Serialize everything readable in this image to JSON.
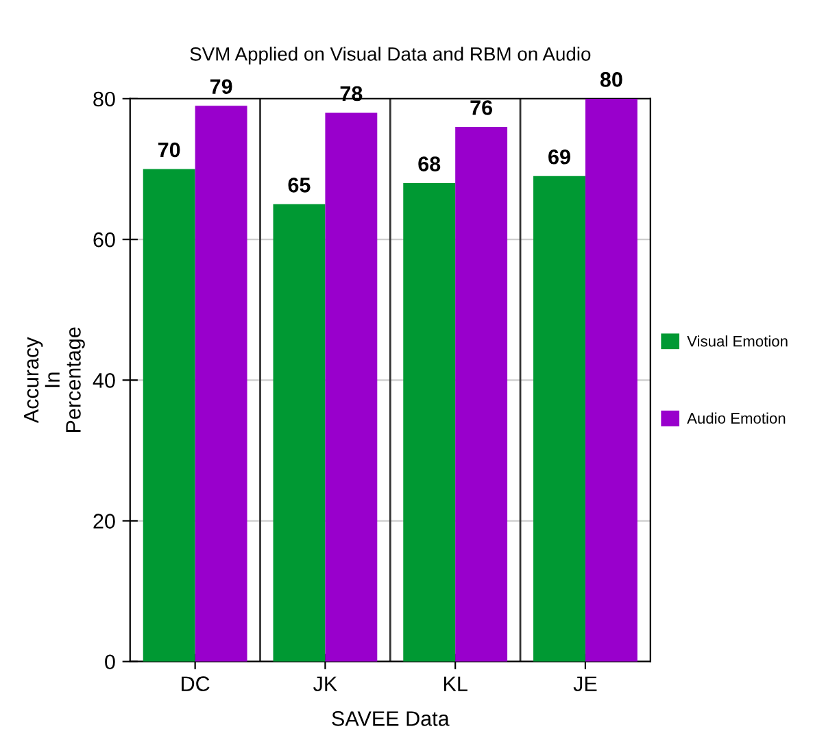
{
  "chart_data": {
    "type": "bar",
    "title": "SVM Applied on Visual Data and RBM on Audio",
    "xlabel": "SAVEE Data",
    "ylabel": "Accuracy\nIn\nPercentage",
    "categories": [
      "DC",
      "JK",
      "KL",
      "JE"
    ],
    "series": [
      {
        "name": "Visual Emotion",
        "color": "#009933",
        "values": [
          70,
          65,
          68,
          69
        ]
      },
      {
        "name": "Audio Emotion",
        "color": "#9900cc",
        "values": [
          79,
          78,
          76,
          80
        ]
      }
    ],
    "ylim": [
      0,
      80
    ],
    "yticks": [
      0,
      20,
      40,
      60,
      80
    ],
    "grid": "y",
    "legend": "right",
    "data_labels": true
  }
}
